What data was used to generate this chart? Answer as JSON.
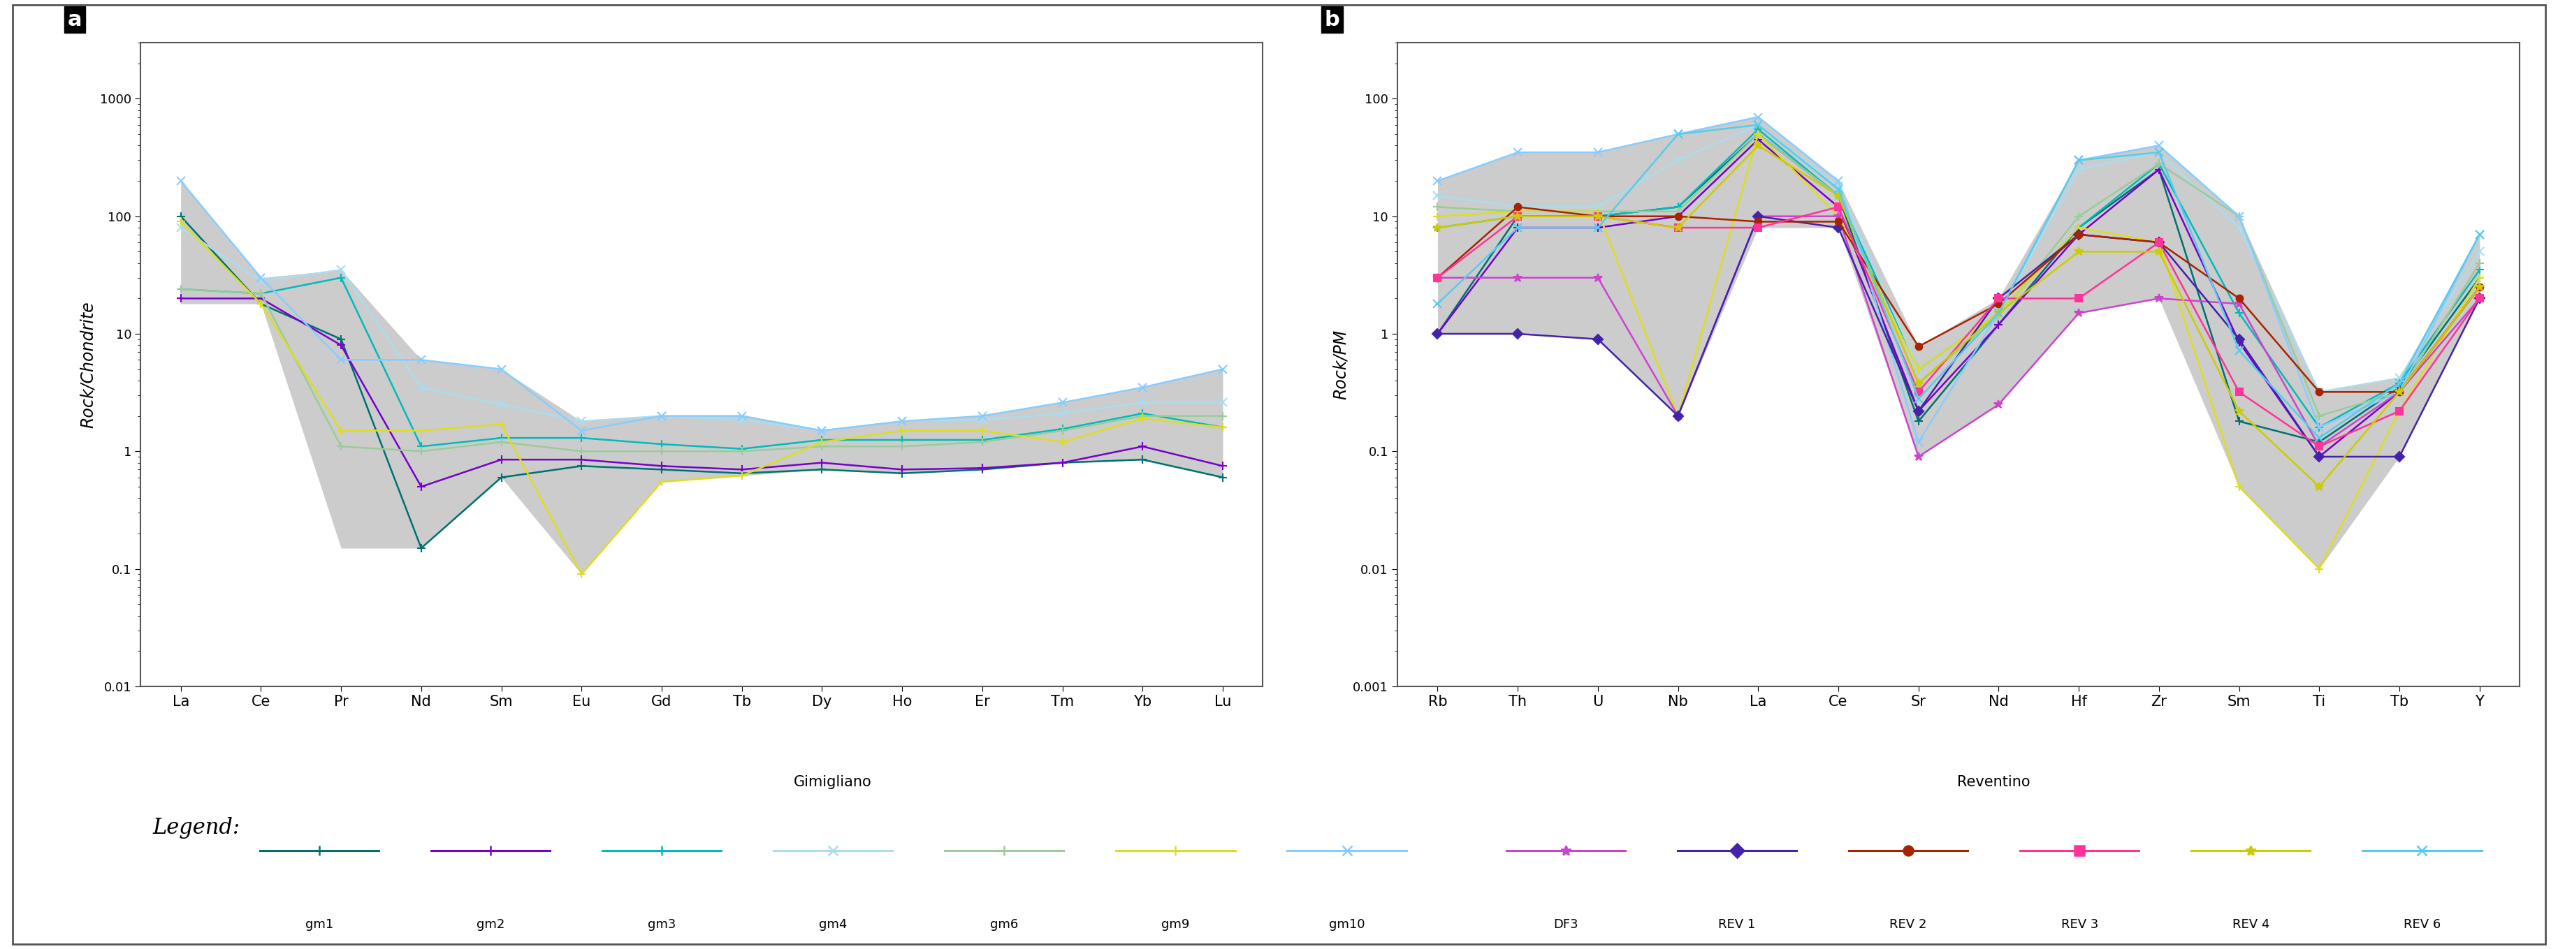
{
  "panel_a": {
    "title": "a",
    "ylabel": "Rock/Chondrite",
    "xlabel_elements": [
      "La",
      "Ce",
      "Pr",
      "Nd",
      "Sm",
      "Eu",
      "Gd",
      "Tb",
      "Dy",
      "Ho",
      "Er",
      "Tm",
      "Yb",
      "Lu"
    ],
    "ylim_log": [
      0.01,
      3000
    ],
    "yticks": [
      0.01,
      0.1,
      1,
      10,
      100,
      1000
    ],
    "ytick_labels": [
      "0.01",
      "0.1",
      "1",
      "10",
      "100",
      "1000"
    ],
    "series": {
      "gm1": {
        "color": "#007070",
        "marker": "+",
        "lw": 1.8,
        "ms": 8,
        "values": [
          100,
          18,
          9,
          0.15,
          0.6,
          0.75,
          0.7,
          0.65,
          0.7,
          0.65,
          0.7,
          0.8,
          0.85,
          0.6
        ]
      },
      "gm2": {
        "color": "#7700cc",
        "marker": "+",
        "lw": 1.8,
        "ms": 8,
        "values": [
          20,
          20,
          8,
          0.5,
          0.85,
          0.85,
          0.75,
          0.7,
          0.8,
          0.7,
          0.72,
          0.8,
          1.1,
          0.75
        ]
      },
      "gm3": {
        "color": "#00bbbb",
        "marker": "+",
        "lw": 1.8,
        "ms": 8,
        "values": [
          24,
          22,
          30,
          1.1,
          1.3,
          1.3,
          1.15,
          1.05,
          1.25,
          1.25,
          1.25,
          1.55,
          2.1,
          1.6
        ]
      },
      "gm4": {
        "color": "#aaddee",
        "marker": "x",
        "lw": 1.8,
        "ms": 8,
        "values": [
          80,
          28,
          35,
          3.5,
          2.5,
          1.8,
          2.0,
          1.85,
          1.5,
          1.8,
          1.85,
          2.1,
          2.6,
          2.6
        ]
      },
      "gm6": {
        "color": "#99cc99",
        "marker": "+",
        "lw": 1.8,
        "ms": 8,
        "values": [
          24,
          22,
          1.1,
          1.0,
          1.2,
          1.0,
          1.0,
          1.0,
          1.1,
          1.1,
          1.2,
          1.5,
          2.0,
          2.0
        ]
      },
      "gm9": {
        "color": "#dddd22",
        "marker": "+",
        "lw": 1.8,
        "ms": 8,
        "values": [
          90,
          18,
          1.5,
          1.5,
          1.7,
          0.09,
          0.55,
          0.62,
          1.2,
          1.5,
          1.5,
          1.2,
          1.9,
          1.6
        ]
      },
      "gm10": {
        "color": "#88ccff",
        "marker": "x",
        "lw": 1.8,
        "ms": 8,
        "values": [
          200,
          30,
          6,
          6,
          5,
          1.5,
          2.0,
          2.0,
          1.5,
          1.8,
          2.0,
          2.6,
          3.5,
          5.0
        ]
      }
    },
    "shade_upper": [
      200,
      30,
      35,
      6,
      5,
      1.8,
      2.0,
      2.0,
      1.5,
      1.8,
      2.0,
      2.6,
      3.5,
      5.0
    ],
    "shade_lower": [
      18,
      18,
      0.15,
      0.15,
      0.6,
      0.09,
      0.55,
      0.62,
      0.7,
      0.65,
      0.7,
      0.8,
      0.85,
      0.6
    ]
  },
  "panel_b": {
    "title": "b",
    "ylabel": "Rock/PM",
    "xlabel_elements": [
      "Rb",
      "Th",
      "U",
      "Nb",
      "La",
      "Ce",
      "Sr",
      "Nd",
      "Hf",
      "Zr",
      "Sm",
      "Ti",
      "Tb",
      "Y"
    ],
    "ylim_log": [
      0.001,
      300
    ],
    "yticks": [
      0.001,
      0.01,
      0.1,
      1,
      10,
      100
    ],
    "ytick_labels": [
      "0.001",
      "0.01",
      "0.1",
      "1",
      "10",
      "100"
    ],
    "series": {
      "gm1": {
        "color": "#007070",
        "marker": "+",
        "lw": 1.8,
        "ms": 8,
        "values": [
          1.0,
          10,
          10,
          12,
          50,
          15,
          0.18,
          1.2,
          8,
          25,
          0.18,
          0.12,
          0.35,
          3.0
        ]
      },
      "gm2": {
        "color": "#7700cc",
        "marker": "+",
        "lw": 1.8,
        "ms": 8,
        "values": [
          1.0,
          8,
          8,
          10,
          45,
          12,
          0.22,
          1.2,
          7,
          25,
          0.85,
          0.09,
          0.32,
          2.5
        ]
      },
      "gm3": {
        "color": "#00bbbb",
        "marker": "+",
        "lw": 1.8,
        "ms": 8,
        "values": [
          8,
          10,
          10,
          12,
          55,
          15,
          0.5,
          1.5,
          8,
          28,
          1.5,
          0.16,
          0.38,
          3.5
        ]
      },
      "gm4": {
        "color": "#aaddee",
        "marker": "x",
        "lw": 1.8,
        "ms": 8,
        "values": [
          15,
          12,
          12,
          30,
          60,
          18,
          0.5,
          1.5,
          25,
          35,
          8,
          0.32,
          0.42,
          5.0
        ]
      },
      "gm6": {
        "color": "#99cc99",
        "marker": "+",
        "lw": 1.8,
        "ms": 8,
        "values": [
          12,
          11,
          11,
          11,
          50,
          15,
          0.38,
          1.4,
          10,
          28,
          10,
          0.2,
          0.32,
          4.0
        ]
      },
      "gm9": {
        "color": "#dddd22",
        "marker": "+",
        "lw": 1.8,
        "ms": 8,
        "values": [
          10,
          11,
          11,
          0.2,
          50,
          10,
          0.5,
          1.5,
          8,
          6,
          0.05,
          0.01,
          0.22,
          3.0
        ]
      },
      "gm10": {
        "color": "#88ccff",
        "marker": "x",
        "lw": 1.8,
        "ms": 8,
        "values": [
          20,
          35,
          35,
          50,
          70,
          20,
          0.12,
          1.5,
          30,
          40,
          10,
          0.16,
          0.32,
          7.0
        ]
      },
      "DF3": {
        "color": "#cc44cc",
        "marker": "*",
        "lw": 1.8,
        "ms": 9,
        "values": [
          3.0,
          3.0,
          3.0,
          0.2,
          10,
          10,
          0.09,
          0.25,
          1.5,
          2.0,
          1.8,
          0.11,
          0.32,
          2.0
        ]
      },
      "REV1": {
        "color": "#4422aa",
        "marker": "D",
        "lw": 1.8,
        "ms": 7,
        "values": [
          1.0,
          1.0,
          0.9,
          0.2,
          10,
          8,
          0.22,
          2.0,
          7,
          6,
          0.9,
          0.09,
          0.09,
          2.0
        ]
      },
      "REV2": {
        "color": "#aa2200",
        "marker": "o",
        "lw": 1.8,
        "ms": 7,
        "values": [
          3.0,
          12,
          10,
          10,
          9,
          9,
          0.78,
          1.8,
          7,
          6,
          2.0,
          0.32,
          0.32,
          2.5
        ]
      },
      "REV3": {
        "color": "#ff3399",
        "marker": "s",
        "lw": 1.8,
        "ms": 7,
        "values": [
          3.0,
          10,
          10,
          8,
          8,
          12,
          0.32,
          2.0,
          2.0,
          6,
          0.32,
          0.11,
          0.22,
          2.0
        ]
      },
      "REV4": {
        "color": "#cccc00",
        "marker": "*",
        "lw": 1.8,
        "ms": 9,
        "values": [
          8,
          10,
          10,
          8,
          40,
          15,
          0.38,
          1.5,
          5,
          5,
          0.22,
          0.05,
          0.32,
          2.5
        ]
      },
      "REV6": {
        "color": "#55ccee",
        "marker": "x",
        "lw": 1.8,
        "ms": 8,
        "values": [
          1.8,
          8,
          8,
          50,
          60,
          17,
          0.28,
          1.5,
          30,
          35,
          0.72,
          0.13,
          0.38,
          7.0
        ]
      }
    },
    "shade_upper": [
      20,
      35,
      35,
      50,
      70,
      20,
      0.78,
      2.0,
      30,
      40,
      10,
      0.32,
      0.42,
      7.0
    ],
    "shade_lower": [
      1.0,
      1.0,
      0.9,
      0.2,
      8,
      8,
      0.09,
      0.25,
      1.5,
      2.0,
      0.05,
      0.01,
      0.09,
      2.0
    ]
  },
  "legend": {
    "gimigliano_label": "Gimigliano",
    "reventino_label": "Reventino",
    "legend_label": "Legend:",
    "gim_items": [
      {
        "name": "gm1",
        "color": "#007070",
        "marker": "+"
      },
      {
        "name": "gm2",
        "color": "#7700cc",
        "marker": "+"
      },
      {
        "name": "gm3",
        "color": "#00bbbb",
        "marker": "+"
      },
      {
        "name": "gm4",
        "color": "#aaddee",
        "marker": "x"
      },
      {
        "name": "gm6",
        "color": "#99cc99",
        "marker": "+"
      },
      {
        "name": "gm9",
        "color": "#dddd22",
        "marker": "+"
      },
      {
        "name": "gm10",
        "color": "#88ccff",
        "marker": "x"
      }
    ],
    "rev_items": [
      {
        "name": "DF3",
        "color": "#cc44cc",
        "marker": "*"
      },
      {
        "name": "REV 1",
        "color": "#4422aa",
        "marker": "D"
      },
      {
        "name": "REV 2",
        "color": "#aa2200",
        "marker": "o"
      },
      {
        "name": "REV 3",
        "color": "#ff3399",
        "marker": "s"
      },
      {
        "name": "REV 4",
        "color": "#cccc00",
        "marker": "*"
      },
      {
        "name": "REV 6",
        "color": "#55ccee",
        "marker": "x"
      }
    ]
  },
  "background_color": "#ffffff",
  "shade_color": "#aaaaaa",
  "border_color": "#555555"
}
